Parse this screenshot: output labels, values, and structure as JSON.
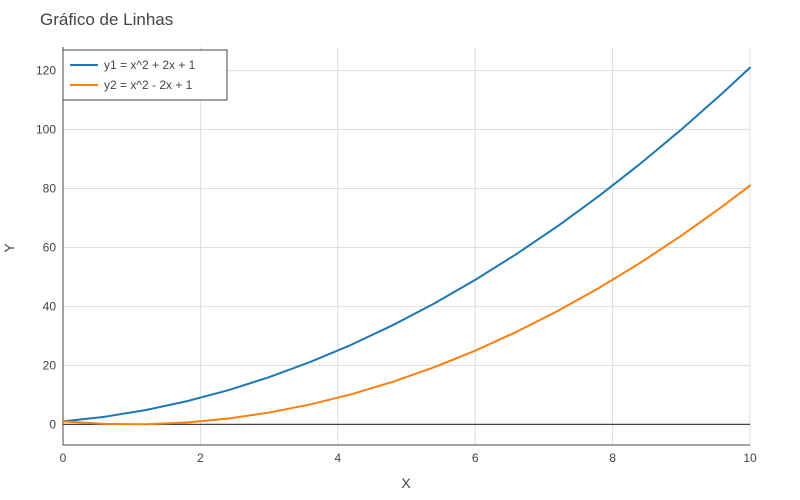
{
  "chart_data": {
    "type": "line",
    "title": "Gráfico de Linhas",
    "xlabel": "X",
    "ylabel": "Y",
    "xlim": [
      0,
      10
    ],
    "ylim": [
      -7,
      128
    ],
    "x_ticks": [
      0,
      2,
      4,
      6,
      8,
      10
    ],
    "y_ticks": [
      0,
      20,
      40,
      60,
      80,
      100,
      120
    ],
    "grid": true,
    "legend_position": "top-left",
    "x": [
      0,
      0.6,
      1.2,
      1.8,
      2.4,
      3.0,
      3.6,
      4.2,
      4.8,
      5.4,
      6.0,
      6.6,
      7.2,
      7.8,
      8.4,
      9.0,
      9.6,
      10.0
    ],
    "series": [
      {
        "name": "y1 = x^2 + 2x + 1",
        "color": "#1f77b4",
        "values": [
          1,
          2.56,
          4.84,
          7.84,
          11.56,
          16,
          21.16,
          27.04,
          33.64,
          40.96,
          49,
          57.76,
          67.24,
          77.44,
          88.36,
          100,
          112.36,
          121
        ]
      },
      {
        "name": "y2 = x^2 - 2x + 1",
        "color": "#ff7f0e",
        "values": [
          1,
          0.16,
          0.04,
          0.64,
          1.96,
          4,
          6.76,
          10.24,
          14.44,
          19.36,
          25,
          31.36,
          38.44,
          46.24,
          54.76,
          64,
          73.96,
          81
        ]
      }
    ]
  }
}
